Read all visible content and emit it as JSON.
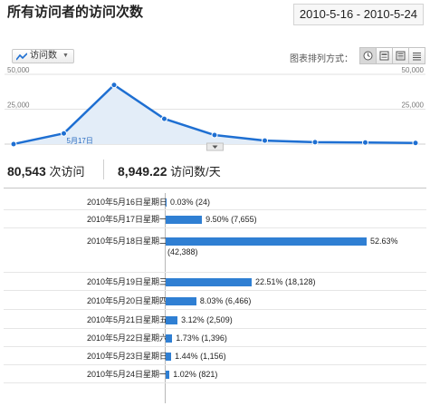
{
  "header": {
    "title": "所有访问者的访问次数",
    "date_range": "2010-5-16 - 2010-5-24"
  },
  "toolbar": {
    "metric_label": "访问数",
    "view_label": "图表排列方式：",
    "view_buttons": [
      {
        "icon": "clock-icon",
        "active": true
      },
      {
        "icon": "detail-view-icon",
        "active": false
      },
      {
        "icon": "compact-view-icon",
        "active": false
      },
      {
        "icon": "list-view-icon",
        "active": false
      }
    ]
  },
  "chart_data": {
    "type": "area",
    "x": [
      "2010-5-16",
      "2010-5-17",
      "2010-5-18",
      "2010-5-19",
      "2010-5-20",
      "2010-5-21",
      "2010-5-22",
      "2010-5-23",
      "2010-5-24"
    ],
    "series": [
      {
        "values": [
          24,
          7655,
          42388,
          18128,
          6466,
          2509,
          1396,
          1156,
          821
        ]
      }
    ],
    "ylim": [
      0,
      50000
    ],
    "y_ticks": [
      "50,000",
      "25,000"
    ],
    "right_ticks": [
      "50,000",
      "25,000"
    ],
    "tooltip_label": "5月17日",
    "line_color": "#1e6fd2",
    "fill_color": "#e3edf8",
    "grid": true
  },
  "totals": {
    "visits_value": "80,543",
    "visits_label": "次访问",
    "daily_value": "8,949.22",
    "daily_label": "访问数/天"
  },
  "breakdown": {
    "bar_color": "#2f7fd3",
    "rows": [
      {
        "label": "2010年5月16日星期日",
        "percent": 0.03,
        "value_text": "0.03% (24)",
        "wrap": false
      },
      {
        "label": "2010年5月17日星期一",
        "percent": 9.5,
        "value_text": "9.50% (7,655)",
        "wrap": false
      },
      {
        "label": "2010年5月18日星期二",
        "percent": 52.63,
        "value_text": "52.63%",
        "value_text2": "(42,388)",
        "wrap": true
      },
      {
        "label": "2010年5月19日星期三",
        "percent": 22.51,
        "value_text": "22.51% (18,128)",
        "wrap": false
      },
      {
        "label": "2010年5月20日星期四",
        "percent": 8.03,
        "value_text": "8.03% (6,466)",
        "wrap": false
      },
      {
        "label": "2010年5月21日星期五",
        "percent": 3.12,
        "value_text": "3.12% (2,509)",
        "wrap": false
      },
      {
        "label": "2010年5月22日星期六",
        "percent": 1.73,
        "value_text": "1.73% (1,396)",
        "wrap": false
      },
      {
        "label": "2010年5月23日星期日",
        "percent": 1.44,
        "value_text": "1.44% (1,156)",
        "wrap": false
      },
      {
        "label": "2010年5月24日星期一",
        "percent": 1.02,
        "value_text": "1.02% (821)",
        "wrap": false
      }
    ]
  }
}
